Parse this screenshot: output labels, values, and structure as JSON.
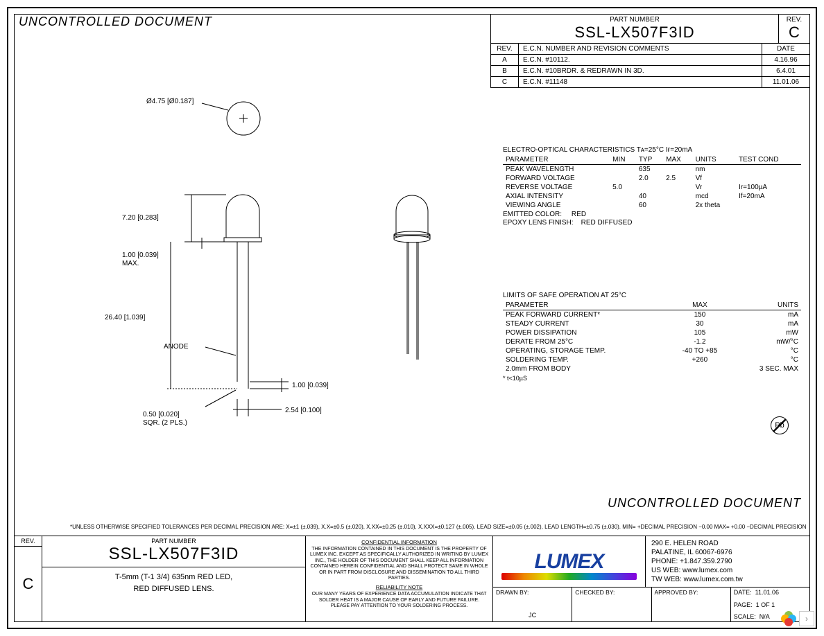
{
  "document": {
    "uncontrolled_label": "UNCONTROLLED DOCUMENT",
    "part_number_label": "PART NUMBER",
    "part_number": "SSL-LX507F3ID",
    "rev_label": "REV.",
    "rev_current": "C",
    "description_line1": "T-5mm (T-1 3/4) 635nm RED LED,",
    "description_line2": "RED DIFFUSED LENS."
  },
  "revision_table": {
    "headers": {
      "rev": "REV.",
      "ecn": "E.C.N. NUMBER AND REVISION COMMENTS",
      "date": "DATE"
    },
    "rows": [
      {
        "rev": "A",
        "ecn": "E.C.N. #10112.",
        "date": "4.16.96"
      },
      {
        "rev": "B",
        "ecn": "E.C.N. #10BRDR. & REDRAWN IN 3D.",
        "date": "6.4.01"
      },
      {
        "rev": "C",
        "ecn": "E.C.N. #11148",
        "date": "11.01.06"
      }
    ]
  },
  "drawing": {
    "top_diameter": "Ø4.75 [Ø0.187]",
    "body_height": "7.20 [0.283]",
    "standoff": "1.00 [0.039]\nMAX.",
    "lead_length": "26.40 [1.039]",
    "anode_label": "ANODE",
    "lead_tip": "1.00 [0.039]",
    "lead_sqr": "0.50 [0.020]\nSQR. (2 PLS.)",
    "lead_pitch": "2.54 [0.100]",
    "colors": {
      "line": "#000000",
      "bg": "#ffffff"
    },
    "line_width": 1,
    "text_fontsize": 10
  },
  "electro_optical": {
    "title": "ELECTRO-OPTICAL CHARACTERISTICS Tᴀ=25°C      Iғ=20mA",
    "headers": [
      "PARAMETER",
      "MIN",
      "TYP",
      "MAX",
      "UNITS",
      "TEST COND"
    ],
    "rows": [
      [
        "PEAK WAVELENGTH",
        "",
        "635",
        "",
        "nm",
        ""
      ],
      [
        "FORWARD VOLTAGE",
        "",
        "2.0",
        "2.5",
        "Vf",
        ""
      ],
      [
        "REVERSE VOLTAGE",
        "5.0",
        "",
        "",
        "Vr",
        "Ir=100µA"
      ],
      [
        "AXIAL INTENSITY",
        "",
        "40",
        "",
        "mcd",
        "If=20mA"
      ],
      [
        "VIEWING ANGLE",
        "",
        "60",
        "",
        "2x theta",
        ""
      ]
    ],
    "emitted_color_label": "EMITTED COLOR:",
    "emitted_color": "RED",
    "lens_label": "EPOXY LENS FINISH:",
    "lens": "RED DIFFUSED"
  },
  "limits": {
    "title": "LIMITS OF SAFE OPERATION AT 25°C",
    "headers": [
      "PARAMETER",
      "MAX",
      "UNITS"
    ],
    "rows": [
      [
        "PEAK FORWARD CURRENT*",
        "150",
        "mA"
      ],
      [
        "STEADY CURRENT",
        "30",
        "mA"
      ],
      [
        "POWER DISSIPATION",
        "105",
        "mW"
      ],
      [
        "DERATE FROM 25°C",
        "-1.2",
        "mW/°C"
      ],
      [
        "OPERATING, STORAGE TEMP.",
        "-40 TO +85",
        "°C"
      ],
      [
        "SOLDERING TEMP.",
        "+260",
        "°C"
      ],
      [
        "2.0mm FROM BODY",
        "",
        "3 SEC. MAX"
      ]
    ],
    "footnote": "* t<10µS"
  },
  "pbfree_label": "Pb",
  "tolerance_note": "*UNLESS OTHERWISE SPECIFIED TOLERANCES PER DECIMAL PRECISION ARE: X=±1 (±.039), X.X=±0.5 (±.020), X.XX=±0.25 (±.010), X.XXX=±0.127 (±.005).  LEAD SIZE=±0.05 (±.002), LEAD LENGTH=±0.75 (±.030). MIN= +DECIMAL PRECISION −0.00   MAX= +0.00 −DECIMAL PRECISION",
  "confidential": {
    "title": "CONFIDENTIAL INFORMATION",
    "body": "THE INFORMATION CONTAINED IN THIS DOCUMENT IS THE PROPERTY OF LUMEX INC. EXCEPT AS SPECIFICALLY AUTHORIZED IN WRITING BY LUMEX INC., THE HOLDER OF THIS DOCUMENT SHALL KEEP ALL INFORMATION CONTAINED HEREIN CONFIDENTIAL AND SHALL PROTECT SAME IN WHOLE OR IN PART FROM DISCLOSURE AND DISSEMINATION TO ALL THIRD PARTIES.",
    "note_title": "RELIABILITY NOTE",
    "note_body": "OUR MANY YEARS OF EXPERIENCE DATA ACCUMULATION INDICATE THAT SOLDER HEAT IS A MAJOR CAUSE OF EARLY AND FUTURE FAILURE. PLEASE PAY ATTENTION TO YOUR SOLDERING PROCESS."
  },
  "contact": {
    "logo_text": "LUMEX",
    "addr1": "290 E. HELEN ROAD",
    "addr2": "PALATINE, IL  60067-6976",
    "phone": "PHONE: +1.847.359.2790",
    "web1": "US WEB: www.lumex.com",
    "web2": "TW WEB: www.lumex.com.tw"
  },
  "signoff": {
    "drawn_label": "DRAWN BY:",
    "drawn_by": "JC",
    "checked_label": "CHECKED BY:",
    "checked_by": "",
    "approved_label": "APPROVED BY:",
    "approved_by": "",
    "date_label": "DATE:",
    "date": "11.01.06",
    "page_label": "PAGE:",
    "page": "1 OF 1",
    "scale_label": "SCALE:",
    "scale": "N/A"
  },
  "colors": {
    "line": "#000000",
    "bg": "#ffffff",
    "logo_blue": "#1840a0",
    "clover": [
      "#8bc34a",
      "#ffb300",
      "#e53935",
      "#29b6f6"
    ]
  }
}
